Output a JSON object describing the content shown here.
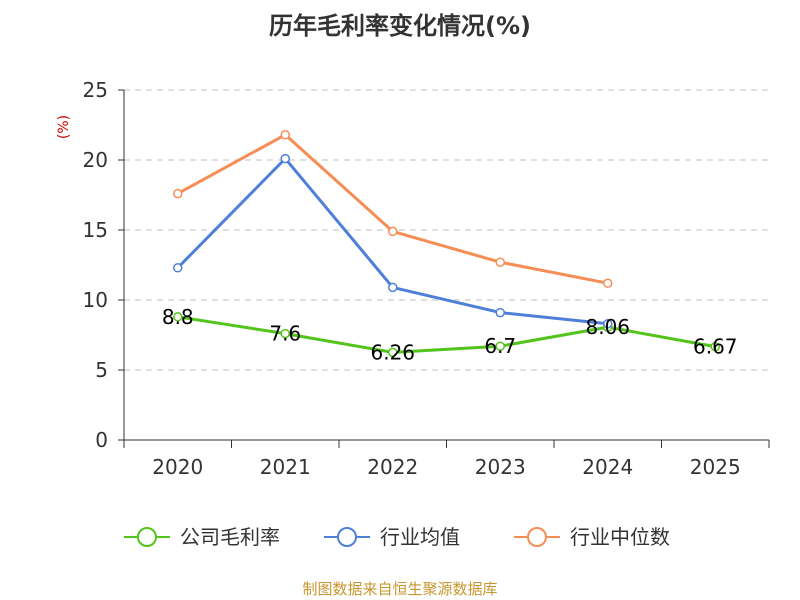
{
  "chart_data": {
    "type": "line",
    "title": "历年毛利率变化情况(%)",
    "ylabel": "(%)",
    "xlabel": "",
    "categories": [
      "2020",
      "2021",
      "2022",
      "2023",
      "2024",
      "2025"
    ],
    "ylim": [
      0,
      25
    ],
    "yticks": [
      0,
      5,
      10,
      15,
      20,
      25
    ],
    "grid": true,
    "legend_position": "bottom",
    "series": [
      {
        "name": "公司毛利率",
        "color": "#52c41a",
        "values": [
          8.8,
          7.6,
          6.26,
          6.7,
          8.06,
          6.67
        ],
        "labels": [
          "8.8",
          "7.6",
          "6.26",
          "6.7",
          "8.06",
          "6.67"
        ]
      },
      {
        "name": "行业均值",
        "color": "#4e7fd9",
        "values": [
          12.3,
          20.1,
          10.9,
          9.1,
          8.3,
          null
        ]
      },
      {
        "name": "行业中位数",
        "color": "#f58d55",
        "values": [
          17.6,
          21.8,
          14.9,
          12.7,
          11.2,
          null
        ]
      }
    ]
  },
  "footer": {
    "source": "制图数据来自恒生聚源数据库"
  }
}
